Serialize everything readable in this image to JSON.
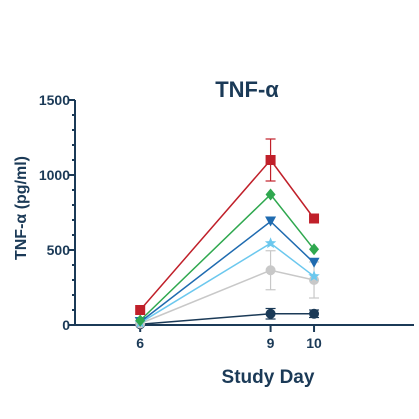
{
  "chart_data": {
    "type": "line",
    "title": "TNF-α",
    "xlabel": "Study Day",
    "ylabel": "TNF-α (pg/ml)",
    "x": [
      6,
      9,
      10
    ],
    "x_tick_labels": [
      "6",
      "9",
      "10"
    ],
    "xlim": [
      4.5,
      12.3
    ],
    "ylim": [
      0,
      1500
    ],
    "y_ticks": [
      0,
      500,
      1000,
      1500
    ],
    "y_tick_labels": [
      "0",
      "500",
      "1000",
      "1500"
    ],
    "grid": false,
    "legend": "none",
    "series": [
      {
        "color": "#c0202a",
        "marker": "square",
        "values": [
          100,
          1100,
          710
        ],
        "errors": [
          0,
          140,
          0
        ]
      },
      {
        "color": "#2fa84f",
        "marker": "diamond",
        "values": [
          30,
          870,
          505
        ],
        "errors": [
          0,
          0,
          0
        ]
      },
      {
        "color": "#1f6bb0",
        "marker": "triangle-down",
        "values": [
          20,
          690,
          415
        ],
        "errors": [
          0,
          0,
          0
        ]
      },
      {
        "color": "#6cc8ee",
        "marker": "star",
        "values": [
          15,
          545,
          325
        ],
        "errors": [
          0,
          0,
          0
        ]
      },
      {
        "color": "#c8c8c8",
        "marker": "circle",
        "values": [
          10,
          365,
          300
        ],
        "errors": [
          0,
          130,
          120
        ]
      },
      {
        "color": "#1b3a57",
        "marker": "circle",
        "values": [
          5,
          75,
          75
        ],
        "errors": [
          0,
          35,
          25
        ]
      }
    ]
  }
}
